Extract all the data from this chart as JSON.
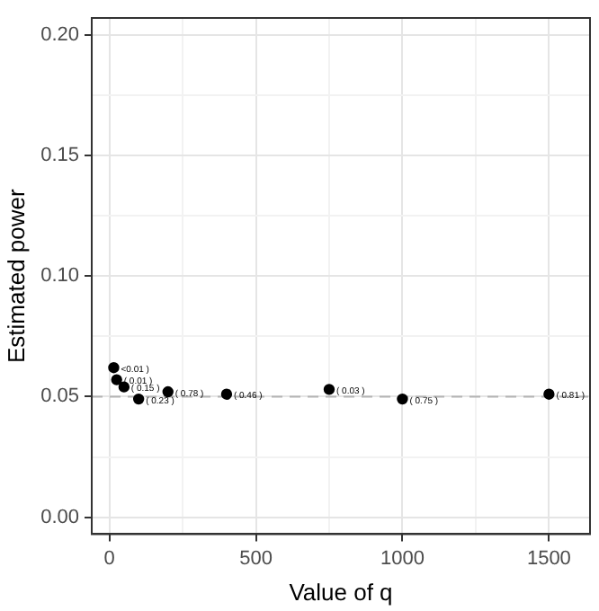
{
  "chart_data": {
    "type": "scatter",
    "xlabel": "Value of q",
    "ylabel": "Estimated power",
    "x": [
      15,
      25,
      50,
      100,
      200,
      400,
      750,
      1000,
      1500
    ],
    "values": [
      0.062,
      0.057,
      0.054,
      0.049,
      0.052,
      0.051,
      0.053,
      0.049,
      0.051
    ],
    "annotations": [
      {
        "text": "<0.01 )",
        "x": 15,
        "y": 0.062
      },
      {
        "text": "( 0.01 )",
        "x": 25,
        "y": 0.057
      },
      {
        "text": "( 0.15 )",
        "x": 50,
        "y": 0.054
      },
      {
        "text": "( 0.23 )",
        "x": 100,
        "y": 0.049
      },
      {
        "text": "( 0.78 )",
        "x": 200,
        "y": 0.052
      },
      {
        "text": "( 0.46 )",
        "x": 400,
        "y": 0.051
      },
      {
        "text": "( 0.03 )",
        "x": 750,
        "y": 0.053
      },
      {
        "text": "( 0.75 )",
        "x": 1000,
        "y": 0.049
      },
      {
        "text": "( 0.81 )",
        "x": 1500,
        "y": 0.051
      }
    ],
    "color": "#000000",
    "marker": "circle",
    "grid": true,
    "xlim": [
      -60,
      1640
    ],
    "ylim": [
      -0.007,
      0.207
    ],
    "xticks": [
      0,
      {
        "value": 250,
        "label": null
      },
      500,
      {
        "value": 750,
        "label": null
      },
      1000,
      {
        "value": 1250,
        "label": null
      },
      1500
    ],
    "yticks": [
      {
        "value": 0,
        "label": "0.00"
      },
      {
        "value": 0.025,
        "label": null
      },
      {
        "value": 0.05,
        "label": "0.05"
      },
      {
        "value": 0.075,
        "label": null
      },
      {
        "value": 0.1,
        "label": "0.10"
      },
      {
        "value": 0.125,
        "label": null
      },
      {
        "value": 0.15,
        "label": "0.15"
      },
      {
        "value": 0.175,
        "label": null
      },
      {
        "value": 0.2,
        "label": "0.20"
      }
    ],
    "ref_lines": [
      {
        "axis": "y",
        "value": 0.05,
        "color": "#b3b3b3",
        "line_style": "dashed"
      }
    ]
  }
}
